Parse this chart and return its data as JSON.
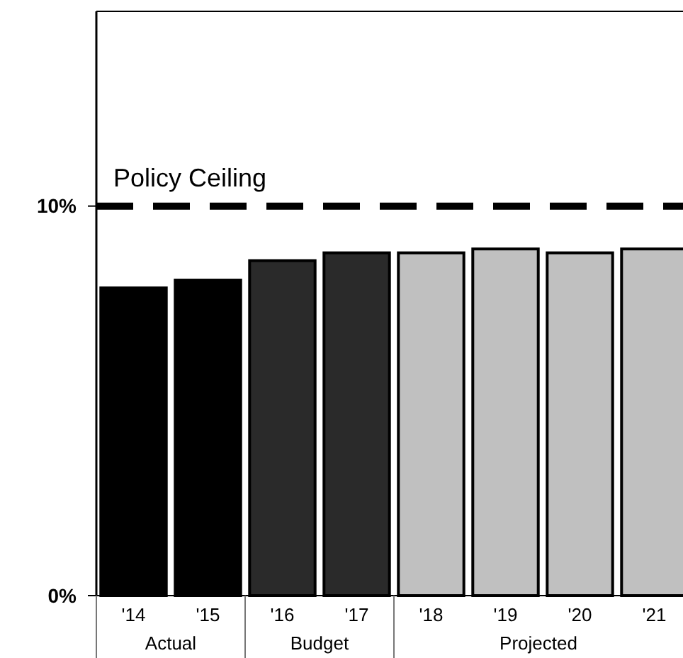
{
  "chart_data": {
    "type": "bar",
    "categories": [
      "'14",
      "'15",
      "'16",
      "'17",
      "'18",
      "'19",
      "'20",
      "'21"
    ],
    "values": [
      7.9,
      8.1,
      8.6,
      8.8,
      8.8,
      8.9,
      8.8,
      8.9
    ],
    "colors": [
      "#000000",
      "#000000",
      "#2a2a2a",
      "#2a2a2a",
      "#c0c0c0",
      "#c0c0c0",
      "#c0c0c0",
      "#c0c0c0"
    ],
    "ylim": [
      0,
      15
    ],
    "yticks": [
      {
        "value": 0,
        "label": "0%"
      },
      {
        "value": 10,
        "label": "10%"
      }
    ],
    "ref_lines": [
      {
        "axis": "y",
        "value": 10,
        "label": "Policy Ceiling",
        "color": "#000000",
        "line_style": "dashed"
      }
    ],
    "annotations": [
      "Actual",
      "Budget",
      "Projected"
    ],
    "grid": false
  }
}
